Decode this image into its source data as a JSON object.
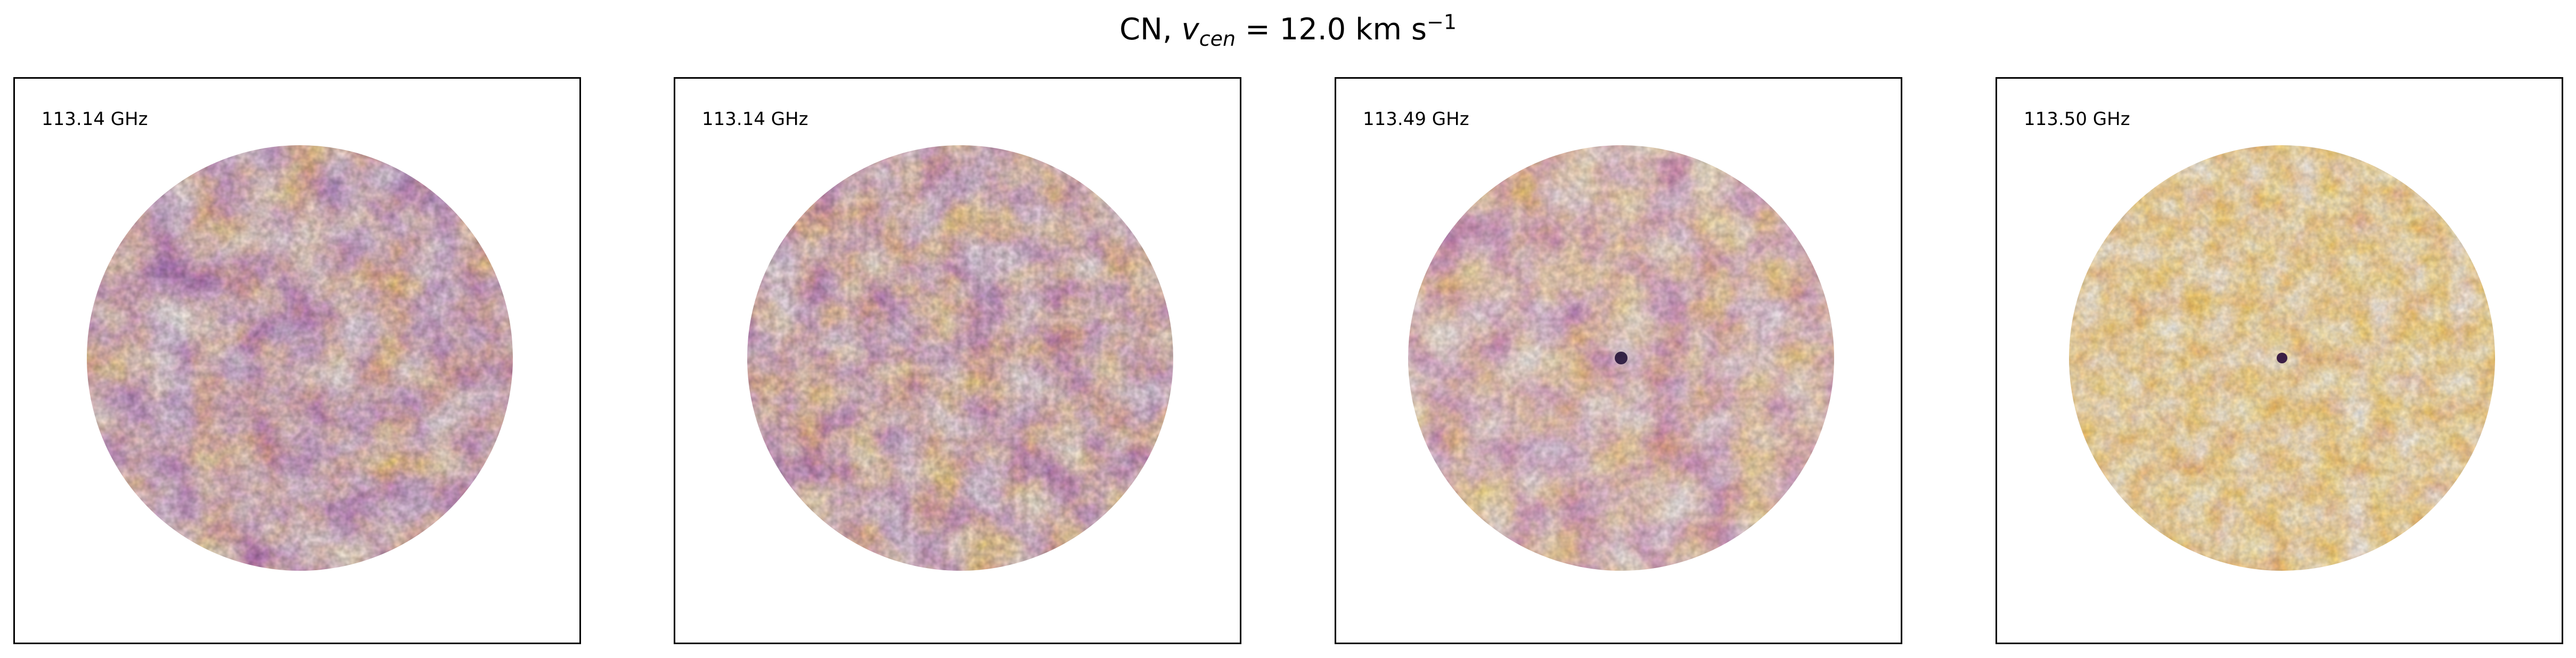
{
  "figure": {
    "title_prefix": "CN, ",
    "v_symbol": "v",
    "v_subscript": "cen",
    "title_value": " =  12.0 km s",
    "unit_exponent": "−1"
  },
  "panels": [
    {
      "label": "113.14 GHz",
      "tone": "mixed"
    },
    {
      "label": "113.14 GHz",
      "tone": "mixed"
    },
    {
      "label": "113.49 GHz",
      "tone": "mixed"
    },
    {
      "label": "113.50 GHz",
      "tone": "bright"
    }
  ],
  "colormap": "inferno",
  "colors": {
    "dark": "#3d1466",
    "mid": "#b8386a",
    "bright": "#f78d1a",
    "hot": "#ffd24a"
  }
}
